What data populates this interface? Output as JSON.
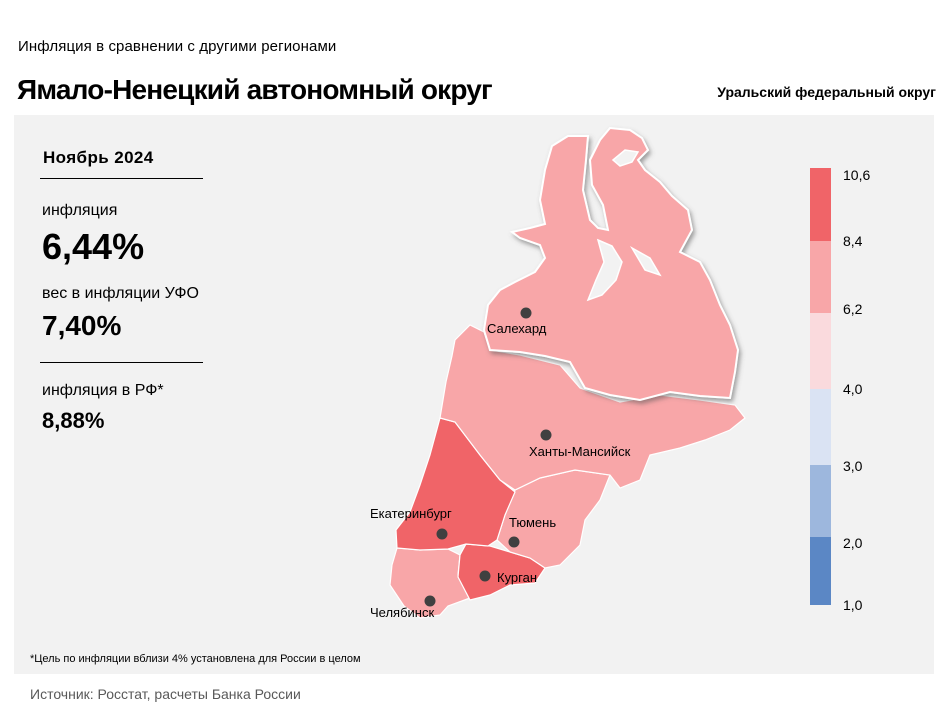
{
  "header": {
    "subtitle": "Инфляция  в сравнении  с другими  регионами",
    "title": "Ямало-Ненецкий автономный округ",
    "district": "Уральский федеральный округ"
  },
  "stats": {
    "period": "Ноябрь 2024",
    "inflation_label": "инфляция",
    "inflation_value": "6,44%",
    "weight_label": "вес в инфляции  УФО",
    "weight_value": "7,40%",
    "rf_label": "инфляция  в РФ*",
    "rf_value": "8,88%"
  },
  "map": {
    "cities": [
      "Салехард",
      "Ханты-Мансийск",
      "Екатеринбург",
      "Тюмень",
      "Курган",
      "Челябинск"
    ],
    "regions": [
      {
        "name": "Ямало-Ненецкий автономный округ",
        "color": "#f8a6a8",
        "highlighted": true
      },
      {
        "name": "Ханты-Мансийский автономный округ",
        "color": "#f8a6a8"
      },
      {
        "name": "Свердловская область",
        "color": "#f06468"
      },
      {
        "name": "Тюменская область",
        "color": "#f8a6a8"
      },
      {
        "name": "Курганская область",
        "color": "#f06468"
      },
      {
        "name": "Челябинская область",
        "color": "#f8a6a8"
      }
    ]
  },
  "legend": {
    "ticks": [
      "10,6",
      "8,4",
      "6,2",
      "4,0",
      "3,0",
      "2,0",
      "1,0"
    ],
    "bins": [
      {
        "from": 8.4,
        "to": 10.6,
        "color": "#f06468"
      },
      {
        "from": 6.2,
        "to": 8.4,
        "color": "#f8a6a8"
      },
      {
        "from": 4.0,
        "to": 6.2,
        "color": "#fadadd"
      },
      {
        "from": 3.0,
        "to": 4.0,
        "color": "#dae3f3"
      },
      {
        "from": 2.0,
        "to": 3.0,
        "color": "#9db7dd"
      },
      {
        "from": 1.0,
        "to": 2.0,
        "color": "#5b87c5"
      }
    ]
  },
  "footnote": "*Цель по инфляции вблизи 4% установлена для России в целом",
  "source": "Источник: Росстат, расчеты Банка России"
}
